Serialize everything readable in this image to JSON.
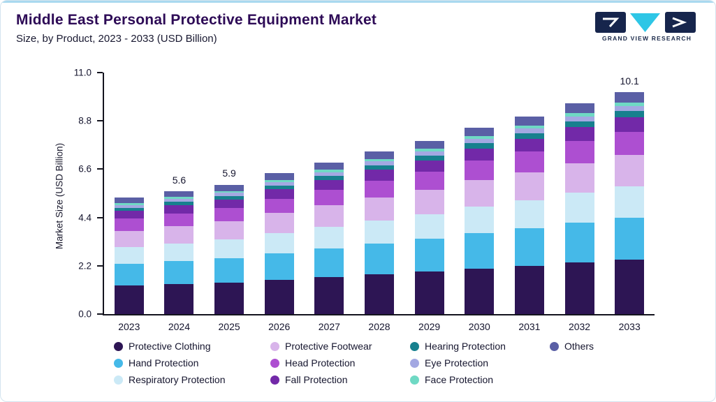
{
  "header": {
    "title": "Middle East Personal Protective Equipment Market",
    "subtitle": "Size, by Product, 2023 - 2033 (USD Billion)",
    "logo_text": "GRAND VIEW RESEARCH"
  },
  "chart_data": {
    "type": "bar",
    "stacked": true,
    "title": "Middle East Personal Protective Equipment Market Size, by Product, 2023 - 2033 (USD Billion)",
    "xlabel": "",
    "ylabel": "Market Size (USD Billion)",
    "ylim": [
      0,
      11
    ],
    "yticks": [
      0,
      2.2,
      4.4,
      6.6,
      8.8,
      11
    ],
    "grid": false,
    "legend_position": "bottom",
    "categories": [
      "2023",
      "2024",
      "2025",
      "2026",
      "2027",
      "2028",
      "2029",
      "2030",
      "2031",
      "2032",
      "2033"
    ],
    "series": [
      {
        "name": "Protective Clothing",
        "color": "#2d1554",
        "values": [
          1.3,
          1.37,
          1.44,
          1.57,
          1.69,
          1.81,
          1.94,
          2.08,
          2.2,
          2.35,
          2.47
        ]
      },
      {
        "name": "Hand Protection",
        "color": "#45b9e8",
        "values": [
          1.0,
          1.06,
          1.12,
          1.21,
          1.3,
          1.4,
          1.49,
          1.61,
          1.7,
          1.81,
          1.91
        ]
      },
      {
        "name": "Respiratory Protection",
        "color": "#cbe9f6",
        "values": [
          0.75,
          0.79,
          0.83,
          0.91,
          0.98,
          1.05,
          1.12,
          1.21,
          1.28,
          1.36,
          1.43
        ]
      },
      {
        "name": "Protective Footwear",
        "color": "#d8b4ea",
        "values": [
          0.75,
          0.79,
          0.83,
          0.91,
          0.98,
          1.05,
          1.12,
          1.21,
          1.28,
          1.36,
          1.43
        ]
      },
      {
        "name": "Head Protection",
        "color": "#ad4fd1",
        "values": [
          0.55,
          0.58,
          0.61,
          0.66,
          0.72,
          0.77,
          0.82,
          0.88,
          0.94,
          1.0,
          1.05
        ]
      },
      {
        "name": "Fall Protection",
        "color": "#7229a8",
        "values": [
          0.35,
          0.37,
          0.39,
          0.42,
          0.45,
          0.49,
          0.52,
          0.56,
          0.59,
          0.63,
          0.67
        ]
      },
      {
        "name": "Hearing Protection",
        "color": "#17808e",
        "values": [
          0.15,
          0.16,
          0.17,
          0.18,
          0.19,
          0.21,
          0.22,
          0.24,
          0.25,
          0.27,
          0.28
        ]
      },
      {
        "name": "Eye Protection",
        "color": "#a3a8e2",
        "values": [
          0.12,
          0.13,
          0.13,
          0.15,
          0.16,
          0.17,
          0.18,
          0.2,
          0.21,
          0.22,
          0.24
        ]
      },
      {
        "name": "Face Protection",
        "color": "#6fd9c4",
        "values": [
          0.08,
          0.08,
          0.09,
          0.1,
          0.1,
          0.11,
          0.12,
          0.13,
          0.14,
          0.15,
          0.16
        ]
      },
      {
        "name": "Others",
        "color": "#5a5fa5",
        "values": [
          0.25,
          0.27,
          0.29,
          0.3,
          0.32,
          0.34,
          0.37,
          0.38,
          0.41,
          0.45,
          0.46
        ]
      }
    ],
    "totals": [
      5.3,
      5.6,
      5.9,
      6.41,
      6.89,
      7.4,
      7.9,
      8.5,
      9.0,
      9.6,
      10.1
    ],
    "bar_labels": {
      "2024": "5.6",
      "2025": "5.9",
      "2033": "10.1"
    }
  },
  "legend": {
    "items": [
      {
        "label": "Protective Clothing",
        "color": "#2d1554",
        "row": 1,
        "col": 1
      },
      {
        "label": "Protective Footwear",
        "color": "#d8b4ea",
        "row": 1,
        "col": 2
      },
      {
        "label": "Hearing Protection",
        "color": "#17808e",
        "row": 1,
        "col": 3
      },
      {
        "label": "Others",
        "color": "#5a5fa5",
        "row": 1,
        "col": 4
      },
      {
        "label": "Hand Protection",
        "color": "#45b9e8",
        "row": 2,
        "col": 1
      },
      {
        "label": "Head Protection",
        "color": "#ad4fd1",
        "row": 2,
        "col": 2
      },
      {
        "label": "Eye Protection",
        "color": "#a3a8e2",
        "row": 2,
        "col": 3
      },
      {
        "label": "Respiratory Protection",
        "color": "#cbe9f6",
        "row": 3,
        "col": 1
      },
      {
        "label": "Fall Protection",
        "color": "#7229a8",
        "row": 3,
        "col": 2
      },
      {
        "label": "Face Protection",
        "color": "#6fd9c4",
        "row": 3,
        "col": 3
      }
    ]
  },
  "colors": {
    "top_accent": "#a9d9ef",
    "title_text": "#2d0a56",
    "axis": "#14141e",
    "logo_navy": "#16254c",
    "logo_cyan": "#2ec6e6"
  }
}
